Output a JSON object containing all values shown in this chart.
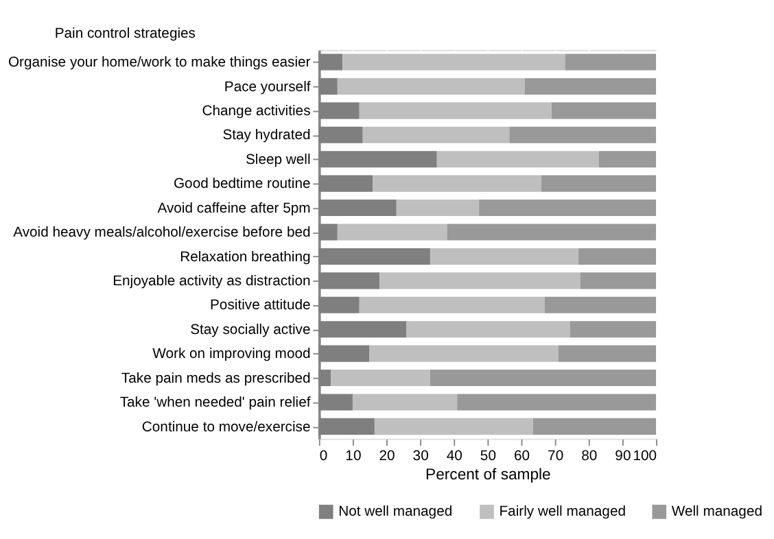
{
  "chart_data": {
    "type": "bar",
    "orientation": "horizontal",
    "stacked": true,
    "ylabel": "Pain control strategies",
    "xlabel": "Percent of sample",
    "categories": [
      "Organise your home/work to make things easier",
      "Pace yourself",
      "Change activities",
      "Stay hydrated",
      "Sleep well",
      "Good bedtime routine",
      "Avoid caffeine after 5pm",
      "Avoid heavy meals/alcohol/exercise before bed",
      "Relaxation breathing",
      "Enjoyable activity as distraction",
      "Positive attitude",
      "Stay socially active",
      "Work on improving mood",
      "Take pain meds as prescribed",
      "Take 'when needed' pain relief",
      "Continue to move/exercise"
    ],
    "series": [
      {
        "name": "Not well managed",
        "color": "#7f7f7f",
        "values": [
          7,
          5.5,
          12,
          13,
          35,
          16,
          23,
          5.5,
          33,
          18,
          12,
          26,
          15,
          3.5,
          10,
          16.5
        ]
      },
      {
        "name": "Fairly well managed",
        "color": "#bfbfbf",
        "values": [
          66,
          55.5,
          57,
          43.5,
          48,
          50,
          24.5,
          32.5,
          44,
          59.5,
          55,
          48.5,
          56,
          29.5,
          31,
          47
        ]
      },
      {
        "name": "Well managed",
        "color": "#999999",
        "values": [
          27,
          39,
          31,
          43.5,
          17,
          34,
          52.5,
          62,
          23,
          22.5,
          33,
          25.5,
          29,
          67,
          59,
          36.5
        ]
      }
    ],
    "xlim": [
      0,
      100
    ],
    "xticks": [
      0,
      10,
      20,
      30,
      40,
      50,
      60,
      70,
      80,
      90,
      100
    ],
    "grid": "x",
    "legend": "bottom"
  }
}
